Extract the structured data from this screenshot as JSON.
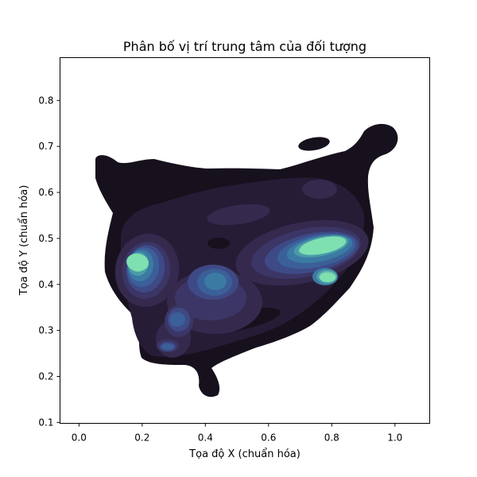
{
  "chart_data": {
    "type": "heatmap",
    "title": "Phân bố vị trí trung tâm của đối tượng",
    "xlabel": "Tọa độ X (chuẩn hóa)",
    "ylabel": "Tọa độ Y (chuẩn hóa)",
    "xlim": [
      -0.06,
      1.11
    ],
    "ylim": [
      0.098,
      0.893
    ],
    "xticks": [
      0.0,
      0.2,
      0.4,
      0.6,
      0.8,
      1.0
    ],
    "xtick_labels": [
      "0.0",
      "0.2",
      "0.4",
      "0.6",
      "0.8",
      "1.0"
    ],
    "yticks": [
      0.1,
      0.2,
      0.3,
      0.4,
      0.5,
      0.6,
      0.7,
      0.8
    ],
    "ytick_labels": [
      "0.1",
      "0.2",
      "0.3",
      "0.4",
      "0.5",
      "0.6",
      "0.7",
      "0.8"
    ],
    "grid": false,
    "legend": "none",
    "colormap": [
      "#17101d",
      "#271c36",
      "#352a4e",
      "#3b3666",
      "#3e4a86",
      "#3b5f99",
      "#3b7aa3",
      "#4b9aa9",
      "#67bea9",
      "#7ee0b0"
    ],
    "density_peaks": [
      {
        "x": 0.19,
        "y": 0.45,
        "level": 10
      },
      {
        "x": 0.76,
        "y": 0.48,
        "level": 10
      },
      {
        "x": 0.79,
        "y": 0.41,
        "level": 9
      },
      {
        "x": 0.43,
        "y": 0.41,
        "level": 7
      },
      {
        "x": 0.31,
        "y": 0.32,
        "level": 6
      },
      {
        "x": 0.28,
        "y": 0.26,
        "level": 5
      }
    ]
  }
}
